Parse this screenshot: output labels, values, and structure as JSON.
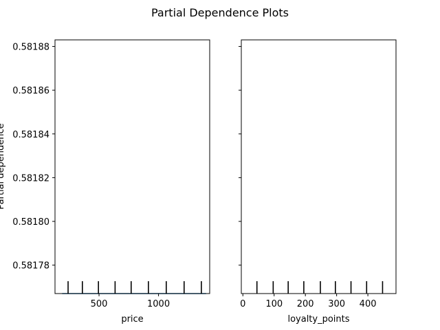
{
  "chart_data": {
    "type": "line",
    "title": "Partial Dependence Plots",
    "ylabel": "Partial dependence",
    "ylim": [
      0.581767,
      0.581883
    ],
    "yticks": [
      0.58178,
      0.5818,
      0.58182,
      0.58184,
      0.58186,
      0.58188
    ],
    "ytick_labels": [
      "0.58178",
      "0.58180",
      "0.58182",
      "0.58184",
      "0.58186",
      "0.58188"
    ],
    "shared_y": true,
    "grid": false,
    "panels": [
      {
        "xlabel": "price",
        "xlim": [
          130,
          1430
        ],
        "xticks": [
          500,
          1000
        ],
        "xtick_labels": [
          "500",
          "1000"
        ],
        "series": [
          {
            "x": [
              190,
              1400
            ],
            "values": [
              0.581767,
              0.581767
            ]
          }
        ],
        "deciles": [
          240,
          360,
          495,
          635,
          770,
          915,
          1065,
          1215,
          1360
        ]
      },
      {
        "xlabel": "loyalty_points",
        "xlim": [
          -5,
          490
        ],
        "xticks": [
          0,
          100,
          200,
          300,
          400
        ],
        "xtick_labels": [
          "0",
          "100",
          "200",
          "300",
          "400"
        ],
        "series": [],
        "deciles": [
          45,
          97,
          145,
          195,
          248,
          296,
          346,
          396,
          447
        ]
      }
    ]
  }
}
